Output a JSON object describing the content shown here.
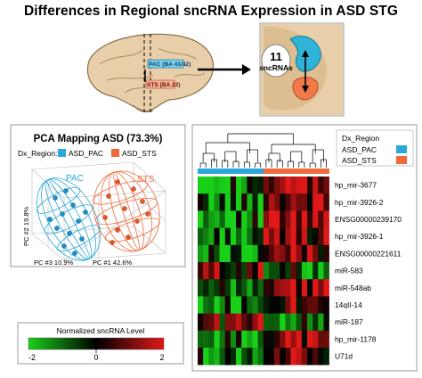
{
  "title": "Differences in Regional sncRNA Expression in ASD STG",
  "brain": {
    "pac_label": "PAC (BA 41/42)",
    "sts_label": "STS (BA 22)",
    "count": "11",
    "count_label": "sncRNAs"
  },
  "pca": {
    "title": "PCA Mapping ASD (73.3%)",
    "legend_title": "Dx_Region:",
    "legend_items": [
      {
        "label": "ASD_PAC",
        "color": "#2aa7d8"
      },
      {
        "label": "ASD_STS",
        "color": "#ee6a3a"
      }
    ],
    "cluster_labels": [
      "PAC",
      "STS"
    ],
    "axis_pc1": "PC #1 42.6%",
    "axis_pc2": "PC #2 19.8%",
    "axis_pc3": "PC #3 10.9%"
  },
  "heatmap": {
    "legend_title": "Dx_Region",
    "legend_items": [
      {
        "label": "ASD_PAC",
        "color": "#2aa7d8"
      },
      {
        "label": "ASD_STS",
        "color": "#ee6a3a"
      }
    ],
    "rows": [
      "hp_mir-3677",
      "hp_mir-3926-2",
      "ENSG00000239170",
      "hp_mir-3926-1",
      "ENSG00000221611",
      "miR-583",
      "miR-548ab",
      "14qII-14",
      "miR-187",
      "hp_mir-1178",
      "U71d"
    ]
  },
  "colorscale": {
    "title": "Normalized sncRNA Level",
    "ticks": [
      "-2",
      "0",
      "2"
    ],
    "colors": [
      "#19d019",
      "#000000",
      "#e01818"
    ]
  }
}
